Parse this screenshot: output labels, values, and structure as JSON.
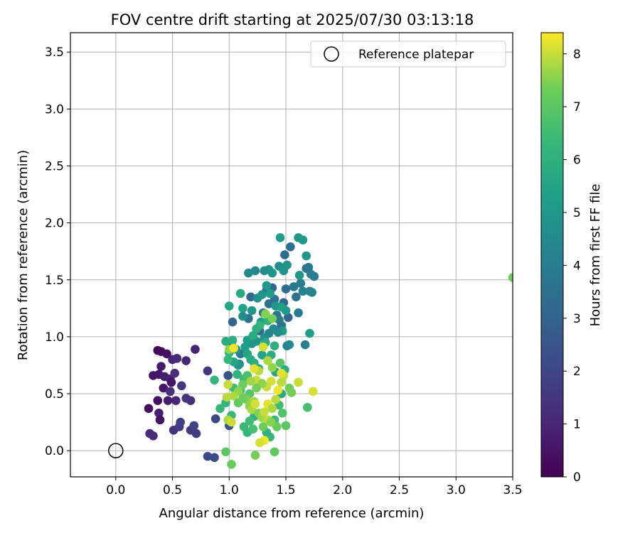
{
  "chart_data": {
    "type": "scatter",
    "title": "FOV centre drift starting at 2025/07/30 03:13:18",
    "xlabel": "Angular distance from reference (arcmin)",
    "ylabel": "Rotation from reference (arcmin)",
    "xlim": [
      -0.4,
      3.5
    ],
    "ylim": [
      -0.23,
      3.67
    ],
    "xticks": [
      "0.0",
      "0.5",
      "1.0",
      "1.5",
      "2.0",
      "2.5",
      "3.0",
      "3.5"
    ],
    "yticks": [
      "0.0",
      "0.5",
      "1.0",
      "1.5",
      "2.0",
      "2.5",
      "3.0",
      "3.5"
    ],
    "grid": true,
    "legend": {
      "position": "top-right",
      "entries": [
        "Reference platepar"
      ]
    },
    "colorbar": {
      "label": "Hours from first FF file",
      "range": [
        0,
        8.4
      ],
      "ticks": [
        "0",
        "1",
        "2",
        "3",
        "4",
        "5",
        "6",
        "7",
        "8"
      ],
      "colormap": "viridis"
    },
    "reference_point": {
      "x": 0.0,
      "y": 0.0
    },
    "points": [
      {
        "x": 0.37,
        "y": 0.88,
        "h": 0.2
      },
      {
        "x": 0.4,
        "y": 0.87,
        "h": 0.3
      },
      {
        "x": 0.45,
        "y": 0.85,
        "h": 0.4
      },
      {
        "x": 0.33,
        "y": 0.66,
        "h": 0.5
      },
      {
        "x": 0.38,
        "y": 0.67,
        "h": 0.6
      },
      {
        "x": 0.4,
        "y": 0.74,
        "h": 0.7
      },
      {
        "x": 0.43,
        "y": 0.65,
        "h": 0.8
      },
      {
        "x": 0.48,
        "y": 0.63,
        "h": 0.9
      },
      {
        "x": 0.5,
        "y": 0.8,
        "h": 1.0
      },
      {
        "x": 0.54,
        "y": 0.81,
        "h": 1.1
      },
      {
        "x": 0.52,
        "y": 0.68,
        "h": 1.2
      },
      {
        "x": 0.49,
        "y": 0.6,
        "h": 0.5
      },
      {
        "x": 0.42,
        "y": 0.55,
        "h": 0.6
      },
      {
        "x": 0.48,
        "y": 0.52,
        "h": 1.3
      },
      {
        "x": 0.53,
        "y": 0.44,
        "h": 1.0
      },
      {
        "x": 0.46,
        "y": 0.44,
        "h": 0.8
      },
      {
        "x": 0.37,
        "y": 0.44,
        "h": 0.4
      },
      {
        "x": 0.29,
        "y": 0.37,
        "h": 0.3
      },
      {
        "x": 0.38,
        "y": 0.33,
        "h": 0.9
      },
      {
        "x": 0.39,
        "y": 0.27,
        "h": 0.5
      },
      {
        "x": 0.3,
        "y": 0.15,
        "h": 1.1
      },
      {
        "x": 0.33,
        "y": 0.13,
        "h": 1.2
      },
      {
        "x": 0.51,
        "y": 0.18,
        "h": 1.4
      },
      {
        "x": 0.56,
        "y": 0.21,
        "h": 1.7
      },
      {
        "x": 0.57,
        "y": 0.25,
        "h": 1.8
      },
      {
        "x": 0.58,
        "y": 0.57,
        "h": 1.5
      },
      {
        "x": 0.62,
        "y": 0.79,
        "h": 1.0
      },
      {
        "x": 0.66,
        "y": 0.44,
        "h": 1.3
      },
      {
        "x": 0.66,
        "y": 0.18,
        "h": 1.6
      },
      {
        "x": 0.69,
        "y": 0.22,
        "h": 1.9
      },
      {
        "x": 0.71,
        "y": 0.15,
        "h": 1.7
      },
      {
        "x": 0.7,
        "y": 0.89,
        "h": 1.0
      },
      {
        "x": 0.62,
        "y": 0.46,
        "h": 1.4
      },
      {
        "x": 0.81,
        "y": 0.7,
        "h": 1.6
      },
      {
        "x": 0.81,
        "y": -0.05,
        "h": 2.1
      },
      {
        "x": 0.87,
        "y": -0.06,
        "h": 2.2
      },
      {
        "x": 0.88,
        "y": 0.28,
        "h": 2.0
      },
      {
        "x": 1.0,
        "y": 0.22,
        "h": 2.3
      },
      {
        "x": 0.99,
        "y": 0.66,
        "h": 2.4
      },
      {
        "x": 1.02,
        "y": 0.93,
        "h": 2.8
      },
      {
        "x": 1.03,
        "y": 1.13,
        "h": 3.0
      },
      {
        "x": 1.1,
        "y": 0.85,
        "h": 4.0
      },
      {
        "x": 1.09,
        "y": 0.76,
        "h": 4.3
      },
      {
        "x": 1.17,
        "y": 1.16,
        "h": 3.6
      },
      {
        "x": 1.19,
        "y": 1.35,
        "h": 3.2
      },
      {
        "x": 1.27,
        "y": 1.05,
        "h": 3.3
      },
      {
        "x": 1.3,
        "y": 1.21,
        "h": 3.8
      },
      {
        "x": 1.33,
        "y": 1.41,
        "h": 3.0
      },
      {
        "x": 1.35,
        "y": 1.29,
        "h": 3.4
      },
      {
        "x": 1.38,
        "y": 1.43,
        "h": 3.1
      },
      {
        "x": 1.4,
        "y": 1.33,
        "h": 3.5
      },
      {
        "x": 1.42,
        "y": 1.19,
        "h": 3.6
      },
      {
        "x": 1.44,
        "y": 1.15,
        "h": 3.9
      },
      {
        "x": 1.46,
        "y": 1.1,
        "h": 3.7
      },
      {
        "x": 1.48,
        "y": 1.3,
        "h": 3.2
      },
      {
        "x": 1.5,
        "y": 1.42,
        "h": 3.4
      },
      {
        "x": 1.52,
        "y": 1.17,
        "h": 3.0
      },
      {
        "x": 1.54,
        "y": 1.79,
        "h": 3.5
      },
      {
        "x": 1.49,
        "y": 1.72,
        "h": 3.3
      },
      {
        "x": 1.57,
        "y": 1.44,
        "h": 3.8
      },
      {
        "x": 1.59,
        "y": 1.35,
        "h": 3.6
      },
      {
        "x": 1.61,
        "y": 1.21,
        "h": 3.9
      },
      {
        "x": 1.63,
        "y": 1.47,
        "h": 4.0
      },
      {
        "x": 1.65,
        "y": 1.4,
        "h": 4.1
      },
      {
        "x": 1.68,
        "y": 1.6,
        "h": 3.6
      },
      {
        "x": 1.7,
        "y": 1.61,
        "h": 3.8
      },
      {
        "x": 1.72,
        "y": 1.55,
        "h": 3.9
      },
      {
        "x": 1.73,
        "y": 1.39,
        "h": 4.2
      },
      {
        "x": 1.71,
        "y": 1.4,
        "h": 4.4
      },
      {
        "x": 1.67,
        "y": 0.93,
        "h": 4.2
      },
      {
        "x": 1.51,
        "y": 0.92,
        "h": 4.2
      },
      {
        "x": 1.53,
        "y": 0.93,
        "h": 4.5
      },
      {
        "x": 1.35,
        "y": 1.59,
        "h": 4.8
      },
      {
        "x": 1.31,
        "y": 1.58,
        "h": 4.6
      },
      {
        "x": 1.23,
        "y": 1.58,
        "h": 4.4
      },
      {
        "x": 1.17,
        "y": 1.56,
        "h": 4.5
      },
      {
        "x": 1.38,
        "y": 1.56,
        "h": 4.9
      },
      {
        "x": 1.44,
        "y": 1.62,
        "h": 4.7
      },
      {
        "x": 1.48,
        "y": 1.58,
        "h": 4.8
      },
      {
        "x": 1.51,
        "y": 1.63,
        "h": 4.9
      },
      {
        "x": 1.61,
        "y": 1.87,
        "h": 5.0
      },
      {
        "x": 1.65,
        "y": 1.85,
        "h": 5.1
      },
      {
        "x": 1.45,
        "y": 1.87,
        "h": 5.3
      },
      {
        "x": 1.62,
        "y": 1.54,
        "h": 5.0
      },
      {
        "x": 1.75,
        "y": 1.53,
        "h": 4.0
      },
      {
        "x": 1.68,
        "y": 1.71,
        "h": 4.9
      },
      {
        "x": 1.71,
        "y": 1.03,
        "h": 5.2
      },
      {
        "x": 1.2,
        "y": 1.23,
        "h": 5.0
      },
      {
        "x": 1.25,
        "y": 1.34,
        "h": 4.7
      },
      {
        "x": 1.29,
        "y": 1.37,
        "h": 4.9
      },
      {
        "x": 1.33,
        "y": 1.45,
        "h": 5.1
      },
      {
        "x": 1.36,
        "y": 1.38,
        "h": 5.2
      },
      {
        "x": 1.41,
        "y": 1.27,
        "h": 5.0
      },
      {
        "x": 1.46,
        "y": 1.26,
        "h": 5.3
      },
      {
        "x": 1.5,
        "y": 1.23,
        "h": 5.1
      },
      {
        "x": 1.47,
        "y": 1.05,
        "h": 5.2
      },
      {
        "x": 1.43,
        "y": 1.04,
        "h": 4.6
      },
      {
        "x": 1.39,
        "y": 1.07,
        "h": 4.5
      },
      {
        "x": 1.35,
        "y": 1.03,
        "h": 4.3
      },
      {
        "x": 1.31,
        "y": 0.99,
        "h": 4.7
      },
      {
        "x": 1.28,
        "y": 1.13,
        "h": 5.1
      },
      {
        "x": 1.24,
        "y": 0.96,
        "h": 4.9
      },
      {
        "x": 1.2,
        "y": 0.94,
        "h": 4.8
      },
      {
        "x": 1.16,
        "y": 0.97,
        "h": 5.2
      },
      {
        "x": 1.12,
        "y": 1.25,
        "h": 5.4
      },
      {
        "x": 1.14,
        "y": 0.91,
        "h": 5.3
      },
      {
        "x": 1.12,
        "y": 1.18,
        "h": 4.6
      },
      {
        "x": 1.08,
        "y": 0.75,
        "h": 5.0
      },
      {
        "x": 1.06,
        "y": 0.89,
        "h": 4.8
      },
      {
        "x": 1.04,
        "y": 0.78,
        "h": 5.5
      },
      {
        "x": 1.1,
        "y": 1.38,
        "h": 5.7
      },
      {
        "x": 1.16,
        "y": 0.85,
        "h": 5.6
      },
      {
        "x": 1.19,
        "y": 0.8,
        "h": 5.8
      },
      {
        "x": 1.22,
        "y": 0.77,
        "h": 5.9
      },
      {
        "x": 1.26,
        "y": 0.72,
        "h": 5.4
      },
      {
        "x": 1.29,
        "y": 0.84,
        "h": 5.5
      },
      {
        "x": 1.32,
        "y": 0.95,
        "h": 5.7
      },
      {
        "x": 1.37,
        "y": 0.84,
        "h": 5.9
      },
      {
        "x": 1.4,
        "y": 0.92,
        "h": 6.0
      },
      {
        "x": 1.34,
        "y": 1.14,
        "h": 6.1
      },
      {
        "x": 1.27,
        "y": 1.1,
        "h": 6.2
      },
      {
        "x": 1.24,
        "y": 1.07,
        "h": 6.0
      },
      {
        "x": 1.21,
        "y": 1.01,
        "h": 5.8
      },
      {
        "x": 1.0,
        "y": 1.27,
        "h": 5.6
      },
      {
        "x": 0.97,
        "y": 0.96,
        "h": 5.8
      },
      {
        "x": 1.0,
        "y": 0.86,
        "h": 6.1
      },
      {
        "x": 0.99,
        "y": 0.8,
        "h": 6.3
      },
      {
        "x": 1.03,
        "y": 0.97,
        "h": 6.0
      },
      {
        "x": 0.87,
        "y": 0.62,
        "h": 6.2
      },
      {
        "x": 0.92,
        "y": 0.37,
        "h": 6.3
      },
      {
        "x": 0.97,
        "y": 0.42,
        "h": 6.2
      },
      {
        "x": 1.02,
        "y": 0.31,
        "h": 6.4
      },
      {
        "x": 1.04,
        "y": 0.55,
        "h": 6.5
      },
      {
        "x": 1.07,
        "y": 0.67,
        "h": 6.1
      },
      {
        "x": 1.1,
        "y": 0.53,
        "h": 6.6
      },
      {
        "x": 1.13,
        "y": 0.63,
        "h": 6.4
      },
      {
        "x": 1.16,
        "y": 0.66,
        "h": 6.7
      },
      {
        "x": 1.18,
        "y": 0.5,
        "h": 6.9
      },
      {
        "x": 1.22,
        "y": 0.3,
        "h": 6.0
      },
      {
        "x": 1.16,
        "y": 0.16,
        "h": 6.2
      },
      {
        "x": 1.13,
        "y": 0.21,
        "h": 6.4
      },
      {
        "x": 1.18,
        "y": 0.26,
        "h": 6.5
      },
      {
        "x": 1.21,
        "y": 0.19,
        "h": 6.6
      },
      {
        "x": 1.4,
        "y": 0.27,
        "h": 6.4
      },
      {
        "x": 1.44,
        "y": 0.4,
        "h": 6.5
      },
      {
        "x": 1.47,
        "y": 0.33,
        "h": 6.8
      },
      {
        "x": 1.45,
        "y": 0.77,
        "h": 6.9
      },
      {
        "x": 1.69,
        "y": 0.38,
        "h": 6.6
      },
      {
        "x": 1.41,
        "y": 0.69,
        "h": 5.6
      },
      {
        "x": 1.49,
        "y": 0.71,
        "h": 5.9
      },
      {
        "x": 1.46,
        "y": 0.5,
        "h": 5.8
      },
      {
        "x": 1.36,
        "y": 0.12,
        "h": 6.3
      },
      {
        "x": 1.33,
        "y": 0.16,
        "h": 6.0
      },
      {
        "x": 0.97,
        "y": -0.01,
        "h": 7.0
      },
      {
        "x": 1.02,
        "y": -0.12,
        "h": 7.2
      },
      {
        "x": 1.23,
        "y": -0.04,
        "h": 7.4
      },
      {
        "x": 1.4,
        "y": -0.01,
        "h": 7.1
      },
      {
        "x": 1.5,
        "y": 0.22,
        "h": 7.0
      },
      {
        "x": 1.42,
        "y": 0.21,
        "h": 7.2
      },
      {
        "x": 1.53,
        "y": 0.55,
        "h": 7.3
      },
      {
        "x": 1.55,
        "y": 0.51,
        "h": 7.4
      },
      {
        "x": 1.74,
        "y": 0.52,
        "h": 8.1
      },
      {
        "x": 1.61,
        "y": 0.6,
        "h": 8.0
      },
      {
        "x": 1.48,
        "y": 0.66,
        "h": 8.0
      },
      {
        "x": 1.46,
        "y": 0.6,
        "h": 7.9
      },
      {
        "x": 1.38,
        "y": 0.73,
        "h": 7.6
      },
      {
        "x": 1.34,
        "y": 0.79,
        "h": 7.8
      },
      {
        "x": 1.3,
        "y": 0.91,
        "h": 8.1
      },
      {
        "x": 1.26,
        "y": 0.7,
        "h": 7.9
      },
      {
        "x": 1.24,
        "y": 0.62,
        "h": 8.0
      },
      {
        "x": 1.22,
        "y": 0.72,
        "h": 8.2
      },
      {
        "x": 1.19,
        "y": 0.61,
        "h": 7.7
      },
      {
        "x": 1.15,
        "y": 0.45,
        "h": 7.5
      },
      {
        "x": 1.12,
        "y": 0.58,
        "h": 7.3
      },
      {
        "x": 1.08,
        "y": 0.52,
        "h": 7.6
      },
      {
        "x": 1.04,
        "y": 0.48,
        "h": 7.8
      },
      {
        "x": 0.99,
        "y": 0.58,
        "h": 8.0
      },
      {
        "x": 0.98,
        "y": 0.47,
        "h": 7.9
      },
      {
        "x": 0.99,
        "y": 0.27,
        "h": 7.8
      },
      {
        "x": 1.02,
        "y": 0.25,
        "h": 8.0
      },
      {
        "x": 1.08,
        "y": 0.42,
        "h": 7.1
      },
      {
        "x": 1.12,
        "y": 0.46,
        "h": 7.3
      },
      {
        "x": 1.18,
        "y": 0.39,
        "h": 7.6
      },
      {
        "x": 1.22,
        "y": 0.43,
        "h": 7.7
      },
      {
        "x": 1.2,
        "y": 0.36,
        "h": 7.8
      },
      {
        "x": 1.23,
        "y": 0.41,
        "h": 8.1
      },
      {
        "x": 1.26,
        "y": 0.33,
        "h": 7.5
      },
      {
        "x": 1.29,
        "y": 0.29,
        "h": 7.7
      },
      {
        "x": 1.31,
        "y": 0.34,
        "h": 8.0
      },
      {
        "x": 1.34,
        "y": 0.41,
        "h": 8.2
      },
      {
        "x": 1.38,
        "y": 0.37,
        "h": 7.8
      },
      {
        "x": 1.41,
        "y": 0.45,
        "h": 7.9
      },
      {
        "x": 1.43,
        "y": 0.53,
        "h": 8.3
      },
      {
        "x": 1.46,
        "y": 0.68,
        "h": 8.2
      },
      {
        "x": 1.37,
        "y": 0.61,
        "h": 8.1
      },
      {
        "x": 1.33,
        "y": 0.56,
        "h": 8.0
      },
      {
        "x": 1.29,
        "y": 0.59,
        "h": 7.6
      },
      {
        "x": 1.24,
        "y": 0.55,
        "h": 7.4
      },
      {
        "x": 1.31,
        "y": 0.09,
        "h": 8.3
      },
      {
        "x": 1.27,
        "y": 0.07,
        "h": 8.1
      },
      {
        "x": 1.32,
        "y": 1.2,
        "h": 7.5
      },
      {
        "x": 1.38,
        "y": 1.16,
        "h": 7.4
      },
      {
        "x": 1.34,
        "y": 0.27,
        "h": 7.9
      },
      {
        "x": 1.37,
        "y": 0.25,
        "h": 7.5
      },
      {
        "x": 1.3,
        "y": 0.21,
        "h": 7.3
      },
      {
        "x": 1.0,
        "y": 0.89,
        "h": 7.6
      },
      {
        "x": 1.04,
        "y": 0.9,
        "h": 8.3
      },
      {
        "x": 3.5,
        "y": 1.52,
        "h": 7.3
      }
    ]
  }
}
